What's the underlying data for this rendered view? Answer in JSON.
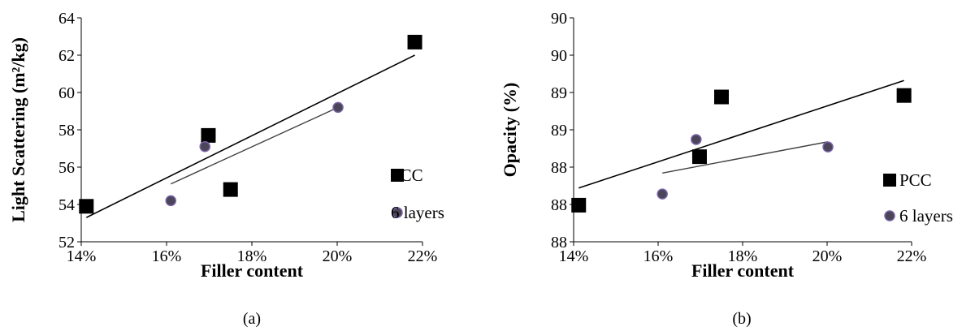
{
  "chart_data": [
    {
      "type": "scatter",
      "panel_label": "(a)",
      "xlabel": "Filler content",
      "ylabel": "Light Scattering (m²/kg)",
      "xlim": [
        0.14,
        0.22
      ],
      "ylim": [
        52,
        64
      ],
      "x_ticks": [
        0.14,
        0.16,
        0.18,
        0.2,
        0.22
      ],
      "x_tick_labels": [
        "14%",
        "16%",
        "18%",
        "20%",
        "22%"
      ],
      "y_ticks": [
        52,
        54,
        56,
        58,
        60,
        62,
        64
      ],
      "y_tick_labels": [
        "52",
        "54",
        "56",
        "58",
        "60",
        "62",
        "64"
      ],
      "grid": false,
      "legend_position": "right",
      "series": [
        {
          "name": "PCC",
          "marker": "square",
          "color": "#000000",
          "x": [
            0.1412,
            0.1698,
            0.175,
            0.2182
          ],
          "y": [
            53.9,
            57.7,
            54.8,
            62.7
          ],
          "trendline": {
            "x": [
              0.1412,
              0.2182
            ],
            "y": [
              53.3,
              62.0
            ],
            "color": "#000000"
          }
        },
        {
          "name": "6 layers",
          "marker": "circle",
          "color": "#4a4558",
          "edge_color": "#7a62a8",
          "x": [
            0.161,
            0.169,
            0.2002
          ],
          "y": [
            54.2,
            57.1,
            59.2
          ],
          "trendline": {
            "x": [
              0.161,
              0.2002
            ],
            "y": [
              55.1,
              59.2
            ],
            "color": "#404040"
          }
        }
      ]
    },
    {
      "type": "scatter",
      "panel_label": "(b)",
      "xlabel": "Filler content",
      "ylabel": "Opacity (%)",
      "xlim": [
        0.14,
        0.22
      ],
      "ylim": [
        87.5,
        90.5
      ],
      "x_ticks": [
        0.14,
        0.16,
        0.18,
        0.2,
        0.22
      ],
      "x_tick_labels": [
        "14%",
        "16%",
        "18%",
        "20%",
        "22%"
      ],
      "y_ticks": [
        87.5,
        88.0,
        88.5,
        89.0,
        89.5,
        90.0,
        90.5
      ],
      "y_tick_labels": [
        "88",
        "88",
        "88",
        "89",
        "89",
        "90",
        "90"
      ],
      "grid": false,
      "legend_position": "right",
      "series": [
        {
          "name": "PCC",
          "marker": "square",
          "color": "#000000",
          "x": [
            0.1412,
            0.1698,
            0.175,
            0.2182
          ],
          "y": [
            87.99,
            88.64,
            89.44,
            89.46
          ],
          "trendline": {
            "x": [
              0.1412,
              0.2182
            ],
            "y": [
              88.22,
              89.66
            ],
            "color": "#000000"
          }
        },
        {
          "name": "6 layers",
          "marker": "circle",
          "color": "#4a4558",
          "edge_color": "#7a62a8",
          "x": [
            0.161,
            0.169,
            0.2002
          ],
          "y": [
            88.14,
            88.87,
            88.77
          ],
          "trendline": {
            "x": [
              0.161,
              0.2002
            ],
            "y": [
              88.42,
              88.84
            ],
            "color": "#404040"
          }
        }
      ]
    }
  ]
}
